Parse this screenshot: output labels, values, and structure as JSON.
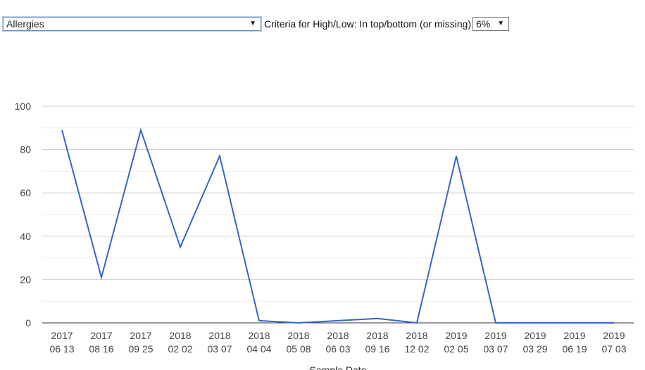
{
  "controls": {
    "category_selected": "Allergies",
    "criteria_label": "Criteria for High/Low: In top/bottom (or missing)",
    "percent_selected": "6%"
  },
  "chart_data": {
    "type": "line",
    "categories": [
      "2017 06 13",
      "2017 08 16",
      "2017 09 25",
      "2018 02 02",
      "2018 03 07",
      "2018 04 04",
      "2018 05 08",
      "2018 06 03",
      "2018 09 16",
      "2018 12 02",
      "2019 02 05",
      "2019 03 07",
      "2019 03 29",
      "2019 06 19",
      "2019 07 03"
    ],
    "values": [
      89,
      21,
      89,
      35,
      77,
      1,
      0,
      1,
      2,
      0,
      77,
      0,
      0,
      0,
      0
    ],
    "ylim": [
      0,
      100
    ],
    "yticks": [
      0,
      20,
      40,
      60,
      80,
      100
    ],
    "xlabel": "Sample Date",
    "grid": true,
    "line_color": "#3366cc"
  }
}
